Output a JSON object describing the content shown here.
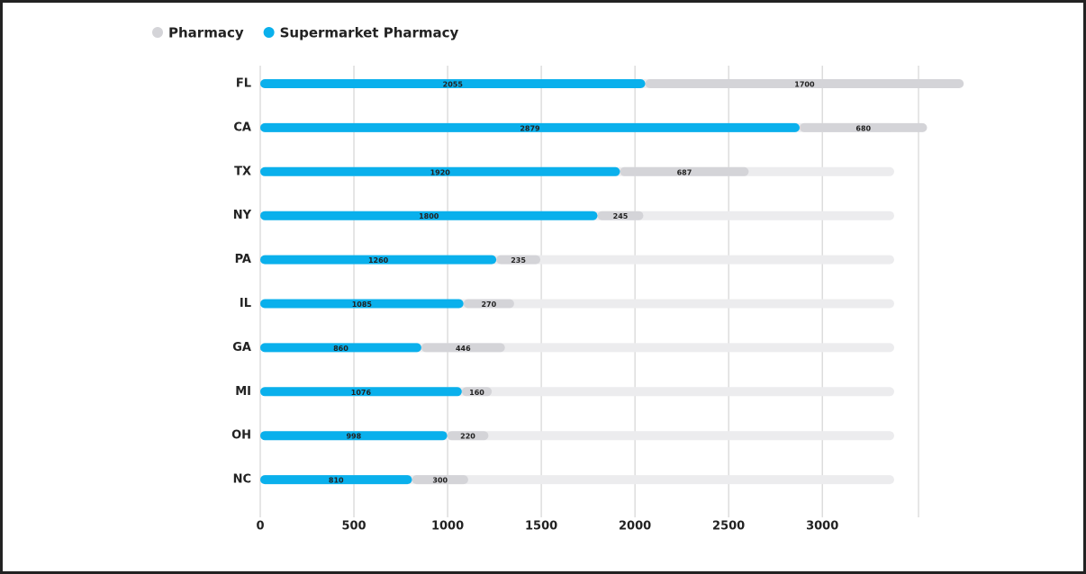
{
  "chart_data": {
    "type": "stacked-hbar",
    "categories": [
      "FL",
      "CA",
      "TX",
      "NY",
      "PA",
      "IL",
      "GA",
      "MI",
      "OH",
      "NC"
    ],
    "series": [
      {
        "name": "Pharmacy",
        "color": "#d4d4d8",
        "values": [
          1700,
          680,
          687,
          245,
          235,
          270,
          446,
          160,
          220,
          300
        ]
      },
      {
        "name": "Supermarket Pharmacy",
        "color": "#0ab0ec",
        "values": [
          2055,
          2879,
          1920,
          1800,
          1260,
          1085,
          860,
          1076,
          998,
          810
        ]
      }
    ],
    "xlim": [
      0,
      3600
    ],
    "xticks": [
      0,
      500,
      1000,
      1500,
      2000,
      2500,
      3000
    ],
    "grid": true
  }
}
